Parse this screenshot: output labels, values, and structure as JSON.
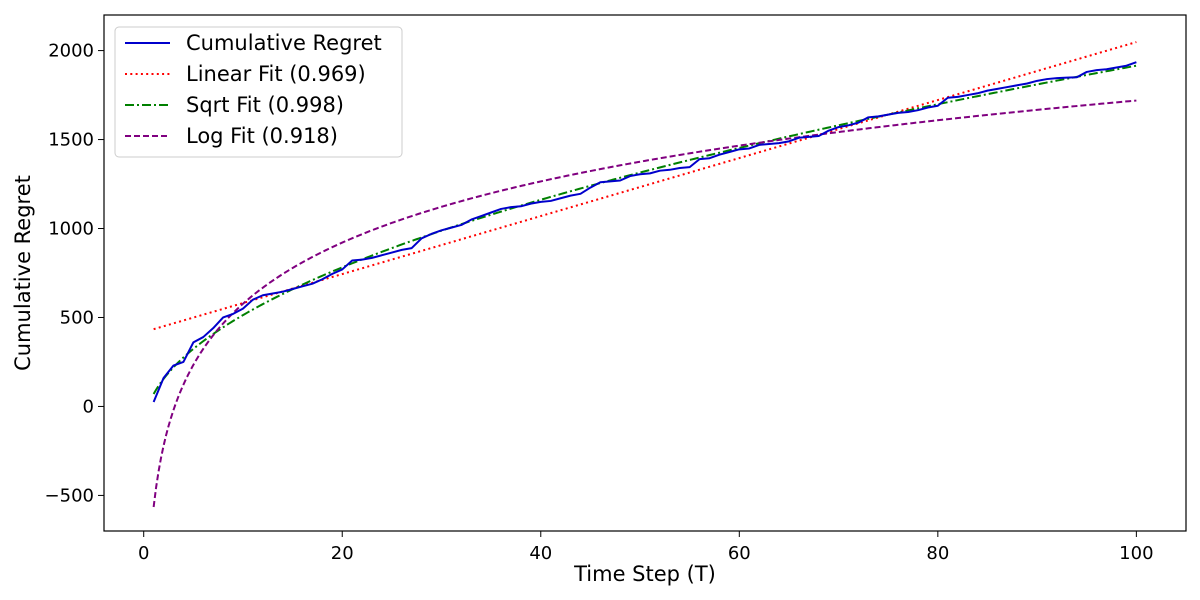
{
  "chart_data": {
    "type": "line",
    "title": "",
    "xlabel": "Time Step (T)",
    "ylabel": "Cumulative Regret",
    "xlim": [
      -4,
      105
    ],
    "ylim": [
      -700,
      2200
    ],
    "xticks": [
      0,
      20,
      40,
      60,
      80,
      100
    ],
    "yticks": [
      -500,
      0,
      500,
      1000,
      1500,
      2000
    ],
    "grid": false,
    "legend_position": "top-left",
    "x": [
      1,
      2,
      3,
      4,
      5,
      6,
      7,
      8,
      9,
      10,
      11,
      12,
      13,
      14,
      15,
      16,
      17,
      18,
      19,
      20,
      21,
      22,
      23,
      24,
      25,
      26,
      27,
      28,
      29,
      30,
      31,
      32,
      33,
      34,
      35,
      36,
      37,
      38,
      39,
      40,
      41,
      42,
      43,
      44,
      45,
      46,
      47,
      48,
      49,
      50,
      51,
      52,
      53,
      54,
      55,
      56,
      57,
      58,
      59,
      60,
      61,
      62,
      63,
      64,
      65,
      66,
      67,
      68,
      69,
      70,
      71,
      72,
      73,
      74,
      75,
      76,
      77,
      78,
      79,
      80,
      81,
      82,
      83,
      84,
      85,
      86,
      87,
      88,
      89,
      90,
      91,
      92,
      93,
      94,
      95,
      96,
      97,
      98,
      99,
      100
    ],
    "series": [
      {
        "name": "Cumulative Regret",
        "color": "#0000cc",
        "style": "solid",
        "values": [
          25,
          160,
          230,
          250,
          360,
          390,
          440,
          500,
          520,
          550,
          600,
          625,
          635,
          645,
          660,
          675,
          690,
          715,
          745,
          770,
          820,
          825,
          835,
          850,
          865,
          880,
          890,
          945,
          970,
          990,
          1005,
          1020,
          1050,
          1070,
          1090,
          1110,
          1120,
          1125,
          1140,
          1150,
          1155,
          1170,
          1185,
          1195,
          1230,
          1260,
          1265,
          1270,
          1295,
          1305,
          1310,
          1325,
          1330,
          1340,
          1345,
          1390,
          1395,
          1415,
          1430,
          1445,
          1450,
          1470,
          1475,
          1480,
          1490,
          1510,
          1515,
          1520,
          1550,
          1570,
          1580,
          1595,
          1625,
          1630,
          1640,
          1650,
          1655,
          1665,
          1680,
          1690,
          1735,
          1740,
          1750,
          1760,
          1775,
          1785,
          1795,
          1805,
          1815,
          1830,
          1840,
          1845,
          1848,
          1850,
          1880,
          1890,
          1895,
          1905,
          1915,
          1935
        ]
      },
      {
        "name": "Linear Fit (0.969)",
        "color": "#ff0000",
        "style": "dotted",
        "fit": "linear",
        "params": {
          "a": 16.3,
          "b": 418
        }
      },
      {
        "name": "Sqrt Fit (0.998)",
        "color": "#008000",
        "style": "dashdot",
        "fit": "sqrt",
        "params": {
          "a": 205,
          "b": -135
        }
      },
      {
        "name": "Log Fit (0.918)",
        "color": "#800080",
        "style": "dashed",
        "fit": "log",
        "params": {
          "a": 496,
          "b": -565
        }
      }
    ]
  }
}
